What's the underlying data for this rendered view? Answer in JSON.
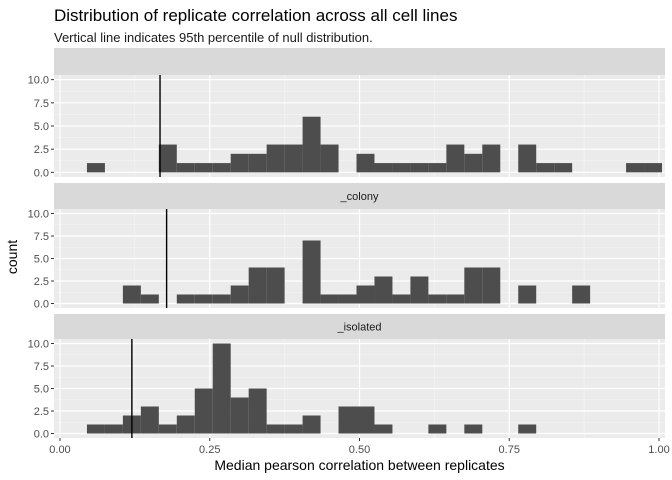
{
  "chart_data": {
    "type": "bar",
    "title": "Distribution of replicate correlation across all cell lines",
    "subtitle": "Vertical line indicates 95th percentile of null distribution.",
    "xlabel": "Median pearson correlation between replicates",
    "ylabel": "count",
    "xlim": [
      -0.01,
      1.01
    ],
    "ylim": [
      -0.5,
      10.5
    ],
    "x_ticks": [
      "0.00",
      "0.25",
      "0.50",
      "0.75",
      "1.00"
    ],
    "y_ticks": [
      "0.0",
      "2.5",
      "5.0",
      "7.5",
      "10.0"
    ],
    "bin_width": 0.03,
    "grid": true,
    "panels": [
      {
        "strip": "",
        "threshold": 0.167,
        "bins": [
          {
            "x": 0.06,
            "count": 1
          },
          {
            "x": 0.18,
            "count": 3
          },
          {
            "x": 0.21,
            "count": 1
          },
          {
            "x": 0.24,
            "count": 1
          },
          {
            "x": 0.27,
            "count": 1
          },
          {
            "x": 0.3,
            "count": 2
          },
          {
            "x": 0.33,
            "count": 2
          },
          {
            "x": 0.36,
            "count": 3
          },
          {
            "x": 0.39,
            "count": 3
          },
          {
            "x": 0.42,
            "count": 6
          },
          {
            "x": 0.45,
            "count": 3
          },
          {
            "x": 0.51,
            "count": 2
          },
          {
            "x": 0.54,
            "count": 1
          },
          {
            "x": 0.57,
            "count": 1
          },
          {
            "x": 0.6,
            "count": 1
          },
          {
            "x": 0.63,
            "count": 1
          },
          {
            "x": 0.66,
            "count": 3
          },
          {
            "x": 0.69,
            "count": 2
          },
          {
            "x": 0.72,
            "count": 3
          },
          {
            "x": 0.78,
            "count": 3
          },
          {
            "x": 0.81,
            "count": 1
          },
          {
            "x": 0.84,
            "count": 1
          },
          {
            "x": 0.96,
            "count": 1
          },
          {
            "x": 0.99,
            "count": 1
          }
        ]
      },
      {
        "strip": "_colony",
        "threshold": 0.178,
        "bins": [
          {
            "x": 0.12,
            "count": 2
          },
          {
            "x": 0.15,
            "count": 1
          },
          {
            "x": 0.21,
            "count": 1
          },
          {
            "x": 0.24,
            "count": 1
          },
          {
            "x": 0.27,
            "count": 1
          },
          {
            "x": 0.3,
            "count": 2
          },
          {
            "x": 0.33,
            "count": 4
          },
          {
            "x": 0.36,
            "count": 4
          },
          {
            "x": 0.42,
            "count": 7
          },
          {
            "x": 0.45,
            "count": 1
          },
          {
            "x": 0.48,
            "count": 1
          },
          {
            "x": 0.51,
            "count": 2
          },
          {
            "x": 0.54,
            "count": 3
          },
          {
            "x": 0.57,
            "count": 1
          },
          {
            "x": 0.6,
            "count": 3
          },
          {
            "x": 0.63,
            "count": 1
          },
          {
            "x": 0.66,
            "count": 1
          },
          {
            "x": 0.69,
            "count": 4
          },
          {
            "x": 0.72,
            "count": 4
          },
          {
            "x": 0.78,
            "count": 2
          },
          {
            "x": 0.87,
            "count": 2
          }
        ]
      },
      {
        "strip": "_isolated",
        "threshold": 0.12,
        "bins": [
          {
            "x": 0.06,
            "count": 1
          },
          {
            "x": 0.09,
            "count": 1
          },
          {
            "x": 0.12,
            "count": 2
          },
          {
            "x": 0.15,
            "count": 3
          },
          {
            "x": 0.18,
            "count": 1
          },
          {
            "x": 0.21,
            "count": 2
          },
          {
            "x": 0.24,
            "count": 5
          },
          {
            "x": 0.27,
            "count": 10
          },
          {
            "x": 0.3,
            "count": 4
          },
          {
            "x": 0.33,
            "count": 5
          },
          {
            "x": 0.36,
            "count": 1
          },
          {
            "x": 0.39,
            "count": 1
          },
          {
            "x": 0.42,
            "count": 2
          },
          {
            "x": 0.48,
            "count": 3
          },
          {
            "x": 0.51,
            "count": 3
          },
          {
            "x": 0.54,
            "count": 1
          },
          {
            "x": 0.63,
            "count": 1
          },
          {
            "x": 0.69,
            "count": 1
          },
          {
            "x": 0.78,
            "count": 1
          }
        ]
      }
    ]
  },
  "colors": {
    "panel_bg": "#ebebeb",
    "grid_major": "#ffffff",
    "strip_bg": "#d9d9d9",
    "bar_fill": "#4d4d4d",
    "threshold_line": "#000000",
    "tick_text": "#4d4d4d"
  }
}
